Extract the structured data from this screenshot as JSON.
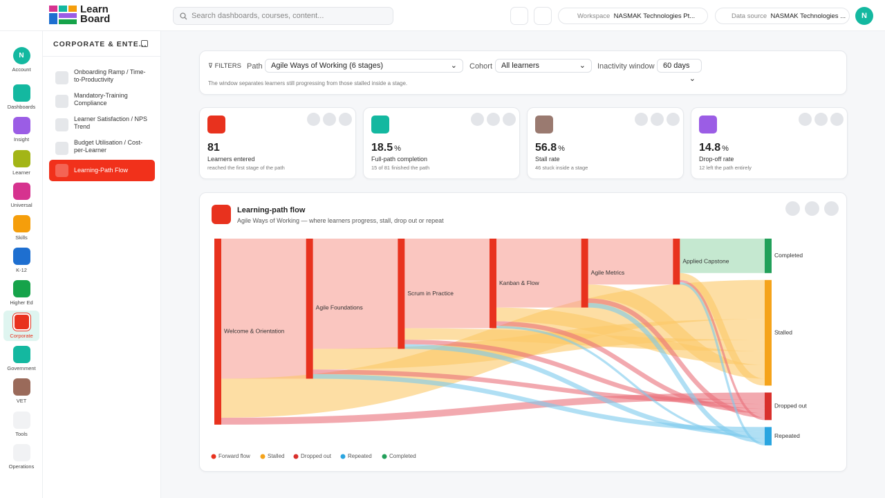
{
  "brand": {
    "line1": "Learn",
    "line2": "Board"
  },
  "search_placeholder": "Search dashboards, courses, content...",
  "topbar": {
    "workspace_label": "Workspace",
    "workspace": "NASMAK Technologies Pt...",
    "datasource_label": "Data source",
    "datasource": "NASMAK Technologies ...",
    "avatar": "N"
  },
  "nav": {
    "active": 8,
    "items": [
      {
        "label": "Account",
        "glyph": "N",
        "color": "#14b8a0"
      },
      {
        "label": "Dashboards",
        "color": "#14b8a0"
      },
      {
        "label": "Insight",
        "color": "#9b5de5"
      },
      {
        "label": "Learner",
        "color": "#a3b516"
      },
      {
        "label": "Universal",
        "color": "#d6338f"
      },
      {
        "label": "Skills",
        "color": "#f59e0b"
      },
      {
        "label": "K-12",
        "color": "#1e6fd0"
      },
      {
        "label": "Higher Ed",
        "color": "#16a34a"
      },
      {
        "label": "Corporate",
        "color": "#e8321e"
      },
      {
        "label": "Government",
        "color": "#14b8a0"
      },
      {
        "label": "VET",
        "color": "#9a6a5a"
      },
      {
        "label": "Tools",
        "color": "#f1f2f4"
      },
      {
        "label": "Operations",
        "color": "#f1f2f4"
      }
    ]
  },
  "sidebar": {
    "title": "CORPORATE & ENTE...",
    "active": 4,
    "items": [
      "Onboarding Ramp / Time-to-Productivity",
      "Mandatory-Training Compliance",
      "Learner Satisfaction / NPS Trend",
      "Budget Utilisation / Cost-per-Learner",
      "Learning-Path Flow"
    ]
  },
  "filters": {
    "label": "FILTERS",
    "path_label": "Path",
    "path": "Agile Ways of Working (6 stages)",
    "cohort_label": "Cohort",
    "cohort": "All learners",
    "inactivity_label": "Inactivity window",
    "inactivity": "60 days",
    "note": "The window separates learners still progressing from those stalled inside a stage."
  },
  "kpis": [
    {
      "value": 81,
      "label": "Learners entered",
      "note": "reached the first stage of the path",
      "color": "#e8321e"
    },
    {
      "value": 18.5,
      "unit": "%",
      "label": "Full-path completion",
      "note": "15 of 81 finished the path",
      "color": "#14b8a0"
    },
    {
      "value": 56.8,
      "unit": "%",
      "label": "Stall rate",
      "note": "46 stuck inside a stage",
      "color": "#9a7a70"
    },
    {
      "value": 14.8,
      "unit": "%",
      "label": "Drop-off rate",
      "note": "12 left the path entirely",
      "color": "#9b5de5"
    }
  ],
  "chart_data": {
    "type": "sankey",
    "title": "Learning-path flow",
    "subtitle": "Agile Ways of Working — where learners progress, stall, drop out or repeat",
    "nodes": [
      {
        "name": "Welcome & Orientation",
        "color": "#e8321e"
      },
      {
        "name": "Agile Foundations",
        "color": "#e8321e"
      },
      {
        "name": "Scrum in Practice",
        "color": "#e8321e"
      },
      {
        "name": "Kanban & Flow",
        "color": "#e8321e"
      },
      {
        "name": "Agile Metrics",
        "color": "#e8321e"
      },
      {
        "name": "Applied Capstone",
        "color": "#e8321e"
      },
      {
        "name": "Completed",
        "color": "#22a05a"
      },
      {
        "name": "Stalled",
        "color": "#f5a31a"
      },
      {
        "name": "Dropped out",
        "color": "#d9302c"
      },
      {
        "name": "Repeated",
        "color": "#2aa5e0"
      }
    ],
    "links": [
      {
        "source": 0,
        "target": 1,
        "value": 61,
        "kind": 0
      },
      {
        "source": 0,
        "target": 7,
        "value": 17,
        "kind": 1
      },
      {
        "source": 0,
        "target": 8,
        "value": 3,
        "kind": 2
      },
      {
        "source": 1,
        "target": 2,
        "value": 48,
        "kind": 0
      },
      {
        "source": 1,
        "target": 7,
        "value": 9,
        "kind": 1
      },
      {
        "source": 1,
        "target": 8,
        "value": 2,
        "kind": 2
      },
      {
        "source": 1,
        "target": 9,
        "value": 2,
        "kind": 3
      },
      {
        "source": 2,
        "target": 3,
        "value": 39,
        "kind": 0
      },
      {
        "source": 2,
        "target": 7,
        "value": 5,
        "kind": 1
      },
      {
        "source": 2,
        "target": 8,
        "value": 2,
        "kind": 2
      },
      {
        "source": 2,
        "target": 9,
        "value": 2,
        "kind": 3
      },
      {
        "source": 3,
        "target": 4,
        "value": 30,
        "kind": 0
      },
      {
        "source": 3,
        "target": 7,
        "value": 6,
        "kind": 1
      },
      {
        "source": 3,
        "target": 8,
        "value": 2,
        "kind": 2
      },
      {
        "source": 3,
        "target": 9,
        "value": 1,
        "kind": 3
      },
      {
        "source": 4,
        "target": 5,
        "value": 20,
        "kind": 0
      },
      {
        "source": 4,
        "target": 7,
        "value": 6,
        "kind": 1
      },
      {
        "source": 4,
        "target": 8,
        "value": 2,
        "kind": 2
      },
      {
        "source": 4,
        "target": 9,
        "value": 2,
        "kind": 3
      },
      {
        "source": 5,
        "target": 6,
        "value": 15,
        "kind": 4
      },
      {
        "source": 5,
        "target": 7,
        "value": 3,
        "kind": 1
      },
      {
        "source": 5,
        "target": 8,
        "value": 1,
        "kind": 2
      },
      {
        "source": 5,
        "target": 9,
        "value": 1,
        "kind": 3
      }
    ],
    "legend": [
      {
        "name": "Forward flow",
        "color": "#e8321e",
        "link_color": "#f7a096"
      },
      {
        "name": "Stalled",
        "color": "#f5a31a",
        "link_color": "#fbc868"
      },
      {
        "name": "Dropped out",
        "color": "#d9302c",
        "link_color": "#e9707a"
      },
      {
        "name": "Repeated",
        "color": "#2aa5e0",
        "link_color": "#7ccaec"
      },
      {
        "name": "Completed",
        "color": "#22a05a",
        "link_color": "#9fd9b0"
      }
    ]
  }
}
